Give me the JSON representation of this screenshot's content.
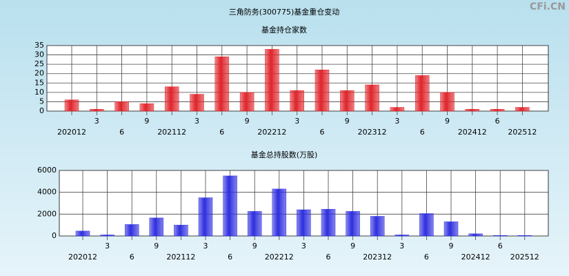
{
  "title": "三角防务(300775)基金重仓变动",
  "watermark": "CFi.CN",
  "chart_data": [
    {
      "type": "bar",
      "title": "基金持仓家数",
      "color": "#e0262c",
      "grid": true,
      "categories": [
        "202012",
        "3",
        "6",
        "9",
        "202112",
        "3",
        "6",
        "9",
        "202212",
        "3",
        "6",
        "9",
        "202312",
        "3",
        "6",
        "9",
        "202412",
        "6",
        "202512"
      ],
      "values": [
        6,
        1,
        5,
        4,
        13,
        9,
        29,
        10,
        33,
        11,
        22,
        11,
        14,
        2,
        19,
        10,
        1,
        1,
        2
      ],
      "ylim": [
        0,
        35
      ],
      "yticks": [
        0,
        5,
        10,
        15,
        20,
        25,
        30,
        35
      ]
    },
    {
      "type": "bar",
      "title": "基金总持股数(万股)",
      "color": "#3030e0",
      "grid": true,
      "categories": [
        "202012",
        "3",
        "6",
        "9",
        "202112",
        "3",
        "6",
        "9",
        "202212",
        "3",
        "6",
        "9",
        "202312",
        "3",
        "6",
        "9",
        "202412",
        "6",
        "202512"
      ],
      "values": [
        450,
        100,
        1050,
        1650,
        1000,
        3500,
        5500,
        2250,
        4300,
        2400,
        2450,
        2250,
        1800,
        100,
        2050,
        1300,
        200,
        50,
        50
      ],
      "ylim": [
        0,
        6000
      ],
      "yticks": [
        0,
        2000,
        4000,
        6000
      ]
    }
  ]
}
